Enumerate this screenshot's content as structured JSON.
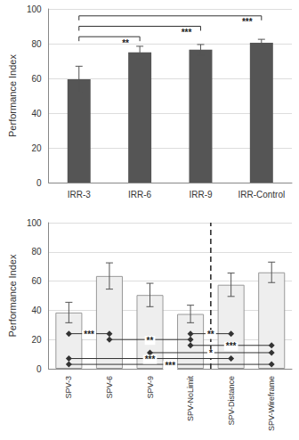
{
  "chart_data": [
    {
      "type": "bar",
      "ylabel": "Performance Index",
      "categories": [
        "IRR-3",
        "IRR-6",
        "IRR-9",
        "IRR-Control"
      ],
      "values": [
        59.5,
        75,
        76.5,
        80.5
      ],
      "errors": [
        7.5,
        3.5,
        3,
        2
      ],
      "color": "#555555",
      "ylim": [
        0,
        100
      ],
      "yticks": [
        0,
        20,
        40,
        60,
        80,
        100
      ],
      "grid": true,
      "comparisons": [
        {
          "from": "IRR-3",
          "to": "IRR-6",
          "label": "**",
          "level": 84
        },
        {
          "from": "IRR-3",
          "to": "IRR-9",
          "label": "***",
          "level": 90
        },
        {
          "from": "IRR-3",
          "to": "IRR-Control",
          "label": "***",
          "level": 96
        }
      ]
    },
    {
      "type": "bar",
      "ylabel": "Performance Index",
      "categories": [
        "SPV-3",
        "SPV-6",
        "SPV-9",
        "SPV-NoLimit",
        "SPV-Distance",
        "SPV-Wireframe"
      ],
      "values": [
        38.5,
        63.5,
        50.5,
        37.5,
        57.5,
        66
      ],
      "errors": [
        7,
        9,
        8,
        6,
        8,
        7
      ],
      "color": "#eeeeee",
      "ylim": [
        0,
        100
      ],
      "yticks": [
        0,
        20,
        40,
        60,
        80,
        100
      ],
      "grid": true,
      "marker": "diamond",
      "comparisons": [
        {
          "from": "SPV-3",
          "to": "SPV-6",
          "label": "***",
          "level": 24
        },
        {
          "from": "SPV-6",
          "to": "SPV-NoLimit",
          "label": "**",
          "level": 20
        },
        {
          "from": "SPV-NoLimit",
          "to": "SPV-Distance",
          "label": "**",
          "level": 24
        },
        {
          "from": "SPV-NoLimit",
          "to": "SPV-Wireframe",
          "label": "***",
          "level": 16
        },
        {
          "from": "SPV-9",
          "to": "SPV-Wireframe",
          "label": "*",
          "level": 11
        },
        {
          "from": "SPV-3",
          "to": "SPV-Distance",
          "label": "***",
          "level": 7
        },
        {
          "from": "SPV-3",
          "to": "SPV-Wireframe",
          "label": "***",
          "level": 3
        }
      ]
    }
  ]
}
